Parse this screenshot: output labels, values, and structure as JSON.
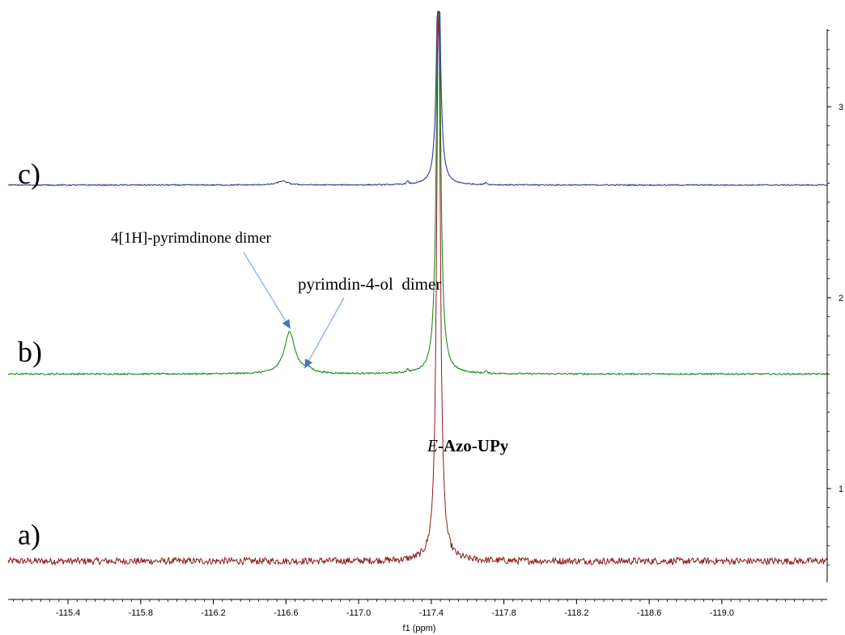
{
  "chart_data": {
    "type": "line",
    "xlabel": "f1 (ppm)",
    "x_ticks": [
      "-115.4",
      "-115.8",
      "-116.2",
      "-116.6",
      "-117.0",
      "-117.4",
      "-117.8",
      "-118.2",
      "-118.6",
      "-119.0"
    ],
    "y_ticks": [
      "1",
      "2",
      "3"
    ],
    "xlim": [
      -115.07,
      -119.58
    ],
    "ylim": [
      0.5,
      3.5
    ],
    "grid": false,
    "series": [
      {
        "name": "a)",
        "color": "#8b1a1a",
        "baseline": 0.62,
        "noise": 0.018,
        "peaks": [
          {
            "x": -117.44,
            "height": 3.0,
            "width": 0.012
          }
        ]
      },
      {
        "name": "b)",
        "color": "#1f8a1f",
        "baseline": 1.6,
        "noise": 0.004,
        "peaks": [
          {
            "x": -117.44,
            "height": 2.5,
            "width": 0.012
          },
          {
            "x": -116.62,
            "height": 0.22,
            "width": 0.035
          },
          {
            "x": -116.72,
            "height": 0.02,
            "width": 0.03
          },
          {
            "x": -117.27,
            "height": 0.015,
            "width": 0.006
          },
          {
            "x": -117.7,
            "height": 0.012,
            "width": 0.006
          }
        ]
      },
      {
        "name": "c)",
        "color": "#2f3a9a",
        "baseline": 2.59,
        "noise": 0.003,
        "peaks": [
          {
            "x": -117.44,
            "height": 1.3,
            "width": 0.012
          },
          {
            "x": -116.58,
            "height": 0.02,
            "width": 0.035
          },
          {
            "x": -117.27,
            "height": 0.015,
            "width": 0.006
          },
          {
            "x": -117.7,
            "height": 0.012,
            "width": 0.006
          }
        ]
      }
    ],
    "annotations": [
      {
        "text": "4[1H]-pyrimdinone dimer",
        "points_to": {
          "x": -116.62,
          "y": 1.82
        }
      },
      {
        "text": "pyrimdin-4-ol  dimer",
        "points_to": {
          "x": -116.72,
          "y": 1.63
        }
      },
      {
        "text_italic": "E",
        "text_bold": "-Azo-UPy"
      }
    ]
  }
}
